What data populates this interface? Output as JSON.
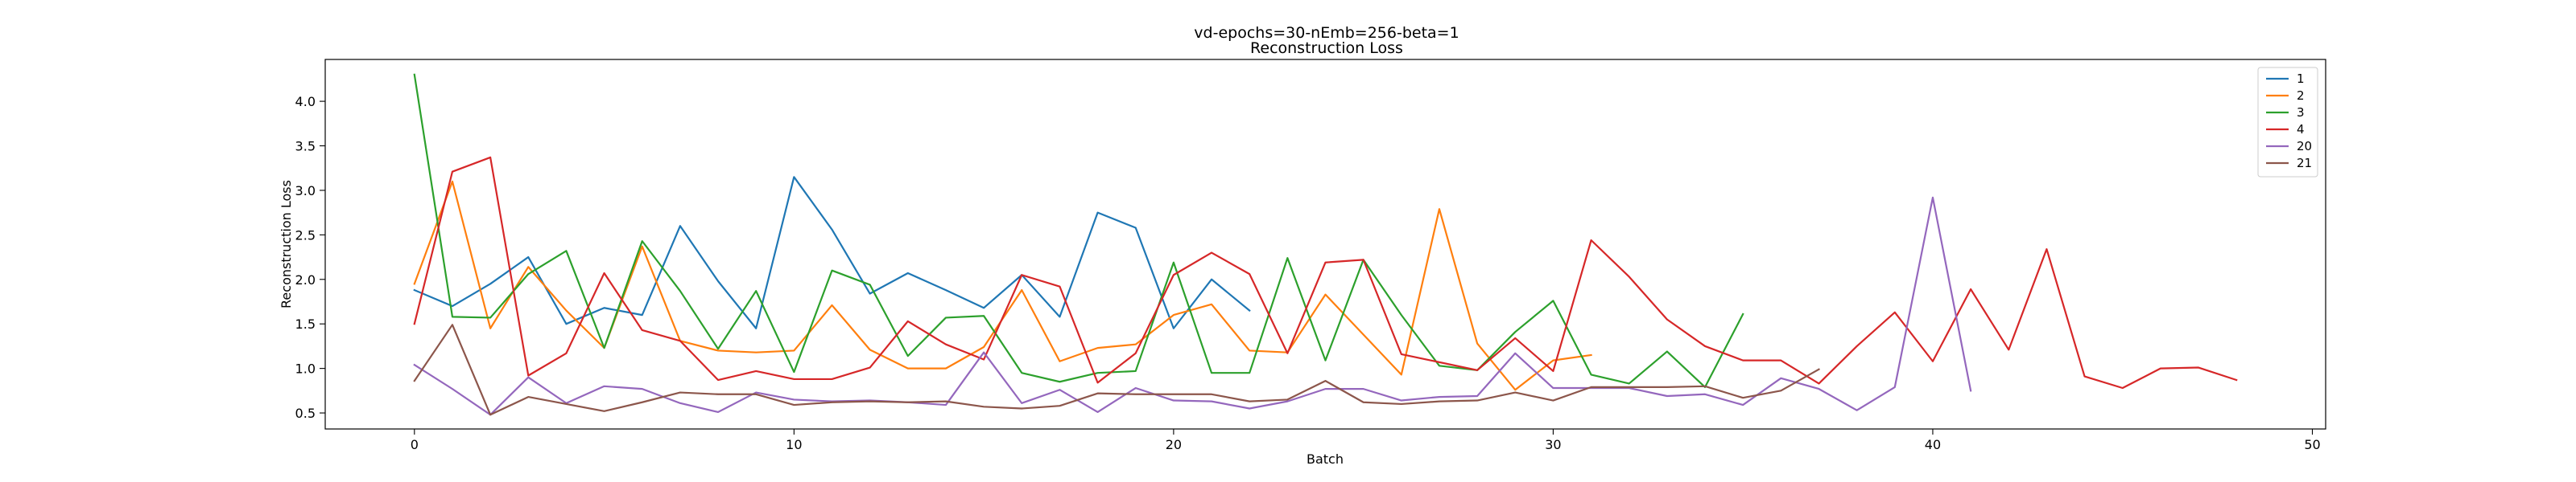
{
  "chart_data": {
    "type": "line",
    "title": "vd-epochs=30-nEmb=256-beta=1",
    "subtitle": "Reconstruction Loss",
    "xlabel": "Batch",
    "ylabel": "Reconstruction Loss",
    "xlim": [
      -2.35,
      50.35
    ],
    "ylim": [
      0.32,
      4.47
    ],
    "xticks": [
      0,
      10,
      20,
      30,
      40,
      50
    ],
    "yticks": [
      0.5,
      1.0,
      1.5,
      2.0,
      2.5,
      3.0,
      3.5,
      4.0
    ],
    "ytick_labels": [
      "0.5",
      "1.0",
      "1.5",
      "2.0",
      "2.5",
      "3.0",
      "3.5",
      "4.0"
    ],
    "grid": false,
    "legend_position": "top-right",
    "series": [
      {
        "name": "1",
        "color": "#1f77b4",
        "values": [
          1.88,
          1.7,
          1.95,
          2.25,
          1.5,
          1.68,
          1.6,
          2.6,
          1.98,
          1.45,
          3.15,
          2.56,
          1.84,
          2.07,
          1.88,
          1.68,
          2.05,
          1.58,
          2.75,
          2.58,
          1.45,
          2.0,
          1.65
        ]
      },
      {
        "name": "2",
        "color": "#ff7f0e",
        "values": [
          1.95,
          3.1,
          1.45,
          2.14,
          1.65,
          1.23,
          2.37,
          1.31,
          1.2,
          1.18,
          1.2,
          1.71,
          1.21,
          1.0,
          1.0,
          1.24,
          1.88,
          1.08,
          1.23,
          1.27,
          1.6,
          1.72,
          1.2,
          1.18,
          1.83,
          1.38,
          0.93,
          2.79,
          1.28,
          0.76,
          1.09,
          1.15
        ]
      },
      {
        "name": "3",
        "color": "#2ca02c",
        "values": [
          4.3,
          1.58,
          1.57,
          2.06,
          2.32,
          1.23,
          2.43,
          1.87,
          1.22,
          1.87,
          0.96,
          2.1,
          1.94,
          1.14,
          1.57,
          1.59,
          0.95,
          0.85,
          0.95,
          0.97,
          2.19,
          0.95,
          0.95,
          2.24,
          1.09,
          2.22,
          1.6,
          1.03,
          0.98,
          1.41,
          1.76,
          0.93,
          0.83,
          1.19,
          0.79,
          1.61
        ]
      },
      {
        "name": "4",
        "color": "#d62728",
        "values": [
          1.5,
          3.21,
          3.37,
          0.92,
          1.17,
          2.07,
          1.43,
          1.31,
          0.87,
          0.97,
          0.88,
          0.88,
          1.01,
          1.53,
          1.27,
          1.1,
          2.05,
          1.92,
          0.84,
          1.17,
          2.05,
          2.3,
          2.06,
          1.17,
          2.19,
          2.22,
          1.16,
          1.07,
          0.98,
          1.34,
          0.97,
          2.44,
          2.03,
          1.55,
          1.25,
          1.09,
          1.09,
          0.83,
          1.25,
          1.63,
          1.08,
          1.89,
          1.21,
          2.34,
          0.91,
          0.78,
          1.0,
          1.01,
          0.87
        ]
      },
      {
        "name": "20",
        "color": "#9467bd",
        "values": [
          1.04,
          0.77,
          0.48,
          0.9,
          0.61,
          0.8,
          0.77,
          0.61,
          0.51,
          0.73,
          0.65,
          0.63,
          0.64,
          0.62,
          0.59,
          1.18,
          0.61,
          0.76,
          0.51,
          0.78,
          0.64,
          0.63,
          0.55,
          0.63,
          0.77,
          0.77,
          0.64,
          0.68,
          0.69,
          1.17,
          0.78,
          0.78,
          0.78,
          0.69,
          0.71,
          0.59,
          0.89,
          0.77,
          0.53,
          0.79,
          2.92,
          0.75
        ]
      },
      {
        "name": "21",
        "color": "#8c564b",
        "values": [
          0.86,
          1.49,
          0.48,
          0.68,
          0.6,
          0.52,
          0.62,
          0.73,
          0.71,
          0.71,
          0.59,
          0.62,
          0.63,
          0.62,
          0.63,
          0.57,
          0.55,
          0.58,
          0.72,
          0.71,
          0.71,
          0.71,
          0.63,
          0.65,
          0.86,
          0.62,
          0.6,
          0.63,
          0.64,
          0.73,
          0.64,
          0.79,
          0.79,
          0.79,
          0.8,
          0.67,
          0.75,
          0.99
        ]
      }
    ]
  }
}
